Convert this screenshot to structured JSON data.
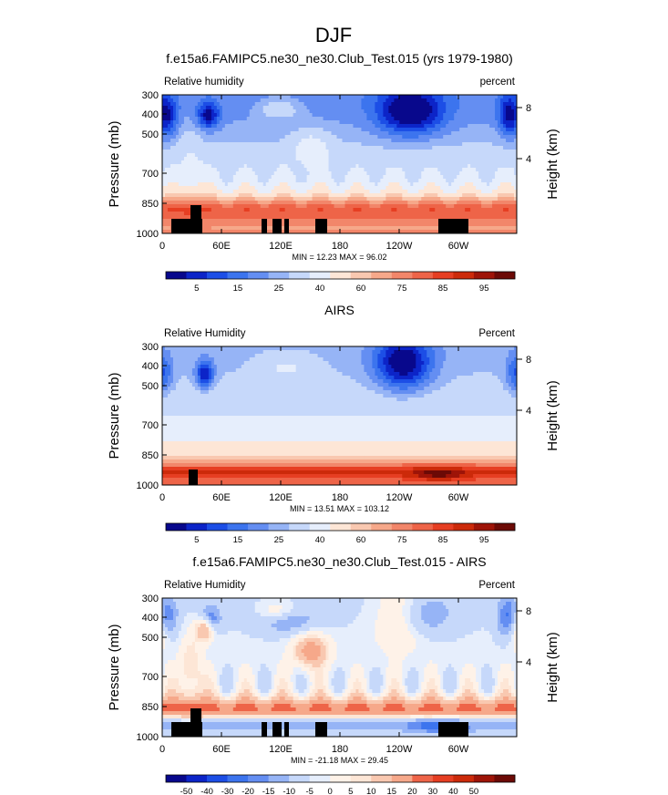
{
  "main_title": "DJF",
  "colors": {
    "seq": [
      "#08088c",
      "#0c24c8",
      "#1c4ee6",
      "#3c74ee",
      "#648ef2",
      "#96b4f6",
      "#c6d8fa",
      "#e6eefc",
      "#fde6d6",
      "#f9c8b0",
      "#f6a88a",
      "#f2866a",
      "#ee6448",
      "#e63e22",
      "#cc2a0a",
      "#9e1408",
      "#6c0a06"
    ],
    "div": [
      "#08088c",
      "#0c24c8",
      "#1c4ee6",
      "#3c74ee",
      "#648ef2",
      "#96b4f6",
      "#c6d8fa",
      "#e6eefc",
      "#fef2e8",
      "#fde6d6",
      "#f9c8b0",
      "#f6a88a",
      "#ee6448",
      "#e63e22",
      "#cc2a0a",
      "#9e1408",
      "#6c0a06"
    ],
    "land": "#000000"
  },
  "chart_data": [
    {
      "type": "heatmap",
      "title": "f.e15a6.FAMIPC5.ne30_ne30.Club_Test.015 (yrs 1979-1980)",
      "left_label": "Relative humidity",
      "right_label": "percent",
      "ylabel": "Pressure (mb)",
      "ylabel_right": "Height (km)",
      "y_ticks": [
        "300",
        "400",
        "500",
        "700",
        "850",
        "1000"
      ],
      "y_right_ticks": [
        "8",
        "4"
      ],
      "x_ticks": [
        "0",
        "60E",
        "120E",
        "180",
        "120W",
        "60W"
      ],
      "stats": "MIN =  12.23   MAX =  96.02",
      "colorbar_labels": [
        "5",
        "15",
        "25",
        "40",
        "60",
        "75",
        "85",
        "95"
      ],
      "palette": "seq"
    },
    {
      "type": "heatmap",
      "title": "AIRS",
      "left_label": "Relative Humidity",
      "right_label": "Percent",
      "ylabel": "Pressure (mb)",
      "ylabel_right": "Height (km)",
      "y_ticks": [
        "300",
        "400",
        "500",
        "700",
        "850",
        "1000"
      ],
      "y_right_ticks": [
        "8",
        "4"
      ],
      "x_ticks": [
        "0",
        "60E",
        "120E",
        "180",
        "120W",
        "60W"
      ],
      "stats": "MIN =  13.51   MAX = 103.12",
      "colorbar_labels": [
        "5",
        "15",
        "25",
        "40",
        "60",
        "75",
        "85",
        "95"
      ],
      "palette": "seq"
    },
    {
      "type": "heatmap",
      "title": "f.e15a6.FAMIPC5.ne30_ne30.Club_Test.015 - AIRS",
      "left_label": "Relative Humidity",
      "right_label": "Percent",
      "ylabel": "Pressure (mb)",
      "ylabel_right": "Height (km)",
      "y_ticks": [
        "300",
        "400",
        "500",
        "700",
        "850",
        "1000"
      ],
      "y_right_ticks": [
        "8",
        "4"
      ],
      "x_ticks": [
        "0",
        "60E",
        "120E",
        "180",
        "120W",
        "60W"
      ],
      "stats": "MIN = -21.18   MAX =  29.45",
      "colorbar_labels": [
        "-50",
        "-40",
        "-30",
        "-20",
        "-15",
        "-10",
        "-5",
        "0",
        "5",
        "10",
        "15",
        "20",
        "30",
        "40",
        "50"
      ],
      "palette": "div"
    }
  ]
}
